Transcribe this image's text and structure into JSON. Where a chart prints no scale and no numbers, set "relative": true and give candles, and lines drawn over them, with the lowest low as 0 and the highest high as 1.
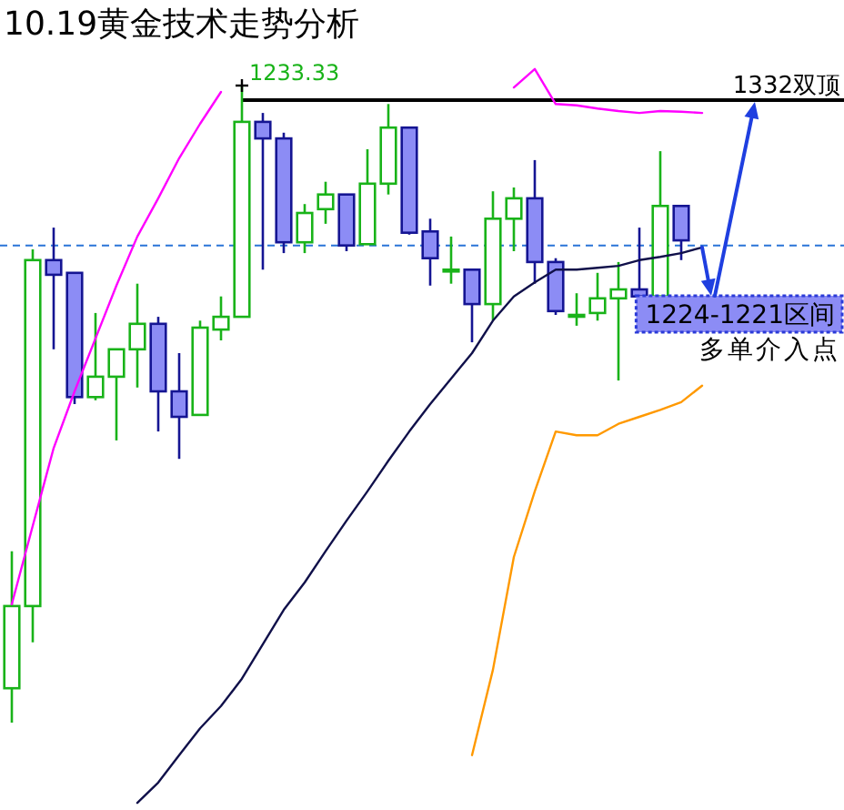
{
  "chart_data": {
    "type": "candlestick",
    "title": "10.19黄金技术走势分析",
    "relative": true,
    "categories": [
      null,
      null,
      null,
      null,
      null,
      null,
      null,
      null,
      null,
      null,
      null,
      null,
      null,
      null,
      null,
      null,
      null,
      null,
      null,
      null,
      null,
      null,
      null,
      null,
      null,
      null,
      null,
      null,
      null,
      null,
      null,
      null,
      null,
      null
    ],
    "ohlc": [
      [
        0.054,
        0.269,
        0,
        0.183
      ],
      [
        0.183,
        0.743,
        0.126,
        0.726
      ],
      [
        0.726,
        0.777,
        0.586,
        0.703
      ],
      [
        0.706,
        0.706,
        0.5,
        0.511
      ],
      [
        0.511,
        0.643,
        0.506,
        0.543
      ],
      [
        0.543,
        0.586,
        0.443,
        0.586
      ],
      [
        0.586,
        0.689,
        0.526,
        0.626
      ],
      [
        0.626,
        0.637,
        0.457,
        0.52
      ],
      [
        0.52,
        0.58,
        0.414,
        0.48
      ],
      [
        0.483,
        0.631,
        0.483,
        0.62
      ],
      [
        0.617,
        0.669,
        0.6,
        0.637
      ],
      [
        0.637,
        1,
        0.637,
        0.943
      ],
      [
        0.943,
        0.957,
        0.711,
        0.917
      ],
      [
        0.917,
        0.926,
        0.737,
        0.754
      ],
      [
        0.754,
        0.814,
        0.737,
        0.8
      ],
      [
        0.806,
        0.849,
        0.783,
        0.829
      ],
      [
        0.829,
        0.829,
        0.74,
        0.749
      ],
      [
        0.751,
        0.9,
        0.751,
        0.846
      ],
      [
        0.846,
        0.971,
        0.829,
        0.934
      ],
      [
        0.934,
        0.934,
        0.766,
        0.769
      ],
      [
        0.771,
        0.791,
        0.686,
        0.729
      ],
      [
        0.711,
        0.763,
        0.689,
        0.711
      ],
      [
        0.711,
        0.711,
        0.597,
        0.657
      ],
      [
        0.657,
        0.834,
        0.631,
        0.791
      ],
      [
        0.791,
        0.84,
        0.74,
        0.823
      ],
      [
        0.823,
        0.883,
        0.689,
        0.723
      ],
      [
        0.723,
        0.729,
        0.64,
        0.646
      ],
      [
        0.64,
        0.674,
        0.623,
        0.64
      ],
      [
        0.643,
        0.706,
        0.631,
        0.666
      ],
      [
        0.666,
        0.723,
        0.537,
        0.68
      ],
      [
        0.68,
        0.777,
        0.666,
        0.669
      ],
      [
        0.669,
        0.897,
        0.669,
        0.811
      ],
      [
        0.811,
        0.811,
        0.726,
        0.757
      ],
      null
    ],
    "colors": [
      "#19b319",
      "#19b319",
      "#8c8cf5",
      "#8c8cf5",
      "#19b319",
      "#19b319",
      "#19b319",
      "#8c8cf5",
      "#8c8cf5",
      "#19b319",
      "#19b319",
      "#19b319",
      "#8c8cf5",
      "#8c8cf5",
      "#19b319",
      "#19b319",
      "#8c8cf5",
      "#19b319",
      "#19b319",
      "#8c8cf5",
      "#8c8cf5",
      "#19b319",
      "#8c8cf5",
      "#19b319",
      "#19b319",
      "#8c8cf5",
      "#8c8cf5",
      "#19b319",
      "#19b319",
      "#19b319",
      "#8c8cf5",
      "#19b319",
      "#8c8cf5",
      null
    ],
    "value_labels": [
      null,
      null,
      null,
      null,
      null,
      null,
      null,
      null,
      null,
      null,
      null,
      "1233.33",
      null,
      null,
      null,
      null,
      null,
      null,
      null,
      null,
      null,
      null,
      null,
      null,
      null,
      null,
      null,
      null,
      null,
      null,
      null,
      null,
      null,
      null
    ],
    "series": [
      {
        "type": "line",
        "color": "#10104a",
        "values": [
          null,
          null,
          null,
          null,
          null,
          null,
          -0.126,
          -0.094,
          -0.051,
          -0.009,
          0.026,
          0.069,
          0.123,
          0.177,
          0.22,
          0.269,
          0.317,
          0.363,
          0.411,
          0.457,
          0.5,
          0.54,
          0.58,
          0.631,
          0.669,
          0.691,
          0.711,
          0.711,
          0.714,
          0.717,
          0.726,
          0.731,
          0.737,
          0.746
        ]
      },
      {
        "type": "line",
        "color": "#ff00ff",
        "values": [
          0.186,
          0.309,
          0.431,
          0.52,
          0.603,
          0.686,
          0.763,
          0.823,
          0.886,
          0.94,
          0.99,
          null,
          null,
          null,
          null,
          null,
          null,
          null,
          null,
          null,
          null,
          null,
          null,
          null,
          0.997,
          1.026,
          0.971,
          0.969,
          0.964,
          0.96,
          0.957,
          0.96,
          0.959,
          0.957
        ]
      },
      {
        "type": "line",
        "color": "#ff9900",
        "values": [
          null,
          null,
          null,
          null,
          null,
          null,
          null,
          null,
          null,
          null,
          null,
          null,
          null,
          null,
          null,
          null,
          null,
          null,
          null,
          null,
          null,
          null,
          -0.051,
          0.083,
          0.26,
          0.363,
          0.457,
          0.451,
          0.451,
          0.469,
          0.48,
          0.491,
          0.503,
          0.529
        ]
      }
    ],
    "ref_lines": [
      {
        "axis": "y",
        "value": 0.749,
        "color": "#2a74d8",
        "line_style": "dashed"
      },
      {
        "axis": "y",
        "value": 0.977,
        "color": "#000000",
        "label": "1332双顶"
      }
    ],
    "annotations": [
      "1224-1221区间",
      "多单介入点"
    ]
  }
}
